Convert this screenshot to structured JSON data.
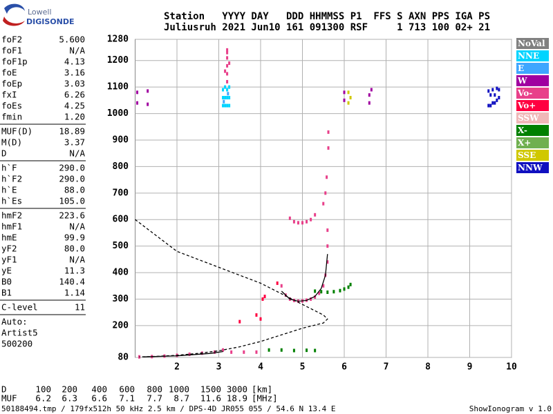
{
  "logo": {
    "top": "Lowell",
    "bottom": "DIGISONDE"
  },
  "header": {
    "line1": "Station   YYYY DAY   DDD HHMMSS P1  FFS S AXN PPS IGA PS",
    "line2": "Juliusruh 2021 Jun10 161 091300 RSF     1 713 100 02+ 21"
  },
  "parameters": [
    [
      [
        "foF2",
        "5.600"
      ],
      [
        "foF1",
        "N/A"
      ],
      [
        "foF1p",
        "4.13"
      ],
      [
        "foE",
        "3.16"
      ],
      [
        "foEp",
        "3.03"
      ],
      [
        "fxI",
        "6.26"
      ],
      [
        "foEs",
        "4.25"
      ],
      [
        "fmin",
        "1.20"
      ]
    ],
    [
      [
        "MUF(D)",
        "18.89"
      ],
      [
        "M(D)",
        "3.37"
      ],
      [
        "D",
        "N/A"
      ]
    ],
    [
      [
        "h`F",
        "290.0"
      ],
      [
        "h`F2",
        "290.0"
      ],
      [
        "h`E",
        "88.0"
      ],
      [
        "h`Es",
        "105.0"
      ]
    ],
    [
      [
        "hmF2",
        "223.6"
      ],
      [
        "hmF1",
        "N/A"
      ],
      [
        "hmE",
        "99.9"
      ],
      [
        "yF2",
        "80.0"
      ],
      [
        "yF1",
        "N/A"
      ],
      [
        "yE",
        "11.3"
      ],
      [
        "B0",
        "140.4"
      ],
      [
        "B1",
        "1.14"
      ]
    ],
    [
      [
        "C-level",
        "11"
      ]
    ]
  ],
  "autoscaling": [
    "Auto:",
    "Artist5",
    "500200"
  ],
  "muf_table": {
    "rows": [
      [
        "D",
        "100",
        "200",
        "400",
        "600",
        "800",
        "1000",
        "1500",
        "3000",
        "[km]"
      ],
      [
        "MUF",
        "6.2",
        "6.3",
        "6.6",
        "7.1",
        "7.7",
        "8.7",
        "11.6",
        "18.9",
        "[MHz]"
      ]
    ]
  },
  "footer": {
    "left": "50188494.tmp / 179fx512h 50 kHz 2.5 km / DPS-4D JR055 055 / 54.6 N 13.4 E",
    "right": "ShowIonogram v 1.0"
  },
  "chart_data": {
    "type": "scatter",
    "grid": true,
    "xlim": [
      1,
      10
    ],
    "xticks": [
      2,
      3,
      4,
      5,
      6,
      7,
      8,
      9,
      10
    ],
    "ylim": [
      80,
      1280
    ],
    "yticks": [
      80,
      200,
      300,
      400,
      500,
      600,
      700,
      800,
      900,
      1000,
      1100,
      1200,
      1280
    ],
    "series": [
      {
        "name": "NoVal",
        "color": "#808080",
        "x": [],
        "y": []
      },
      {
        "name": "NNE",
        "color": "#00d4ff",
        "x": [
          3.1,
          3.15,
          3.2,
          3.25,
          3.1,
          3.15,
          3.2,
          3.25,
          3.1,
          3.2,
          3.15,
          3.25
        ],
        "y": [
          1030,
          1030,
          1030,
          1030,
          1060,
          1060,
          1060,
          1060,
          1090,
          1090,
          1100,
          1100
        ]
      },
      {
        "name": "E",
        "color": "#3fa6ff",
        "x": [
          3.12,
          3.22
        ],
        "y": [
          1045,
          1075
        ]
      },
      {
        "name": "W",
        "color": "#a000a0",
        "x": [
          1.05,
          1.05,
          1.3,
          1.3,
          6.6,
          6.6,
          6.65,
          6.0,
          6.0
        ],
        "y": [
          1040,
          1080,
          1035,
          1085,
          1040,
          1070,
          1090,
          1050,
          1080
        ]
      },
      {
        "name": "Vo-",
        "color": "#e8408a",
        "x": [
          1.1,
          1.4,
          1.7,
          2.0,
          2.3,
          2.6,
          2.9,
          3.1,
          3.3,
          3.6,
          3.9,
          4.5,
          4.6,
          4.7,
          4.8,
          4.9,
          5.0,
          5.1,
          5.2,
          5.3,
          5.4,
          5.5,
          5.55,
          5.6,
          5.6,
          5.6,
          4.7,
          4.8,
          4.9,
          5.0,
          5.1,
          5.2,
          5.3,
          5.5,
          5.55,
          5.58,
          5.62,
          5.62,
          3.2,
          3.2,
          3.2,
          3.2,
          3.2,
          3.2,
          3.15,
          3.25
        ],
        "y": [
          82,
          83,
          85,
          88,
          92,
          96,
          100,
          108,
          100,
          100,
          100,
          350,
          315,
          300,
          295,
          292,
          293,
          296,
          300,
          308,
          322,
          350,
          390,
          440,
          500,
          560,
          605,
          592,
          588,
          588,
          592,
          600,
          618,
          660,
          700,
          760,
          870,
          930,
          1120,
          1150,
          1180,
          1210,
          1230,
          1240,
          1160,
          1190
        ]
      },
      {
        "name": "Vo+",
        "color": "#ff0040",
        "x": [
          3.9,
          4.0,
          4.05,
          4.1,
          4.4,
          3.5
        ],
        "y": [
          240,
          225,
          300,
          310,
          360,
          215
        ]
      },
      {
        "name": "SSW",
        "color": "#f0b8b8",
        "x": [],
        "y": []
      },
      {
        "name": "X-",
        "color": "#008000",
        "x": [
          5.3,
          5.45,
          5.6,
          5.75,
          5.9,
          6.0,
          6.1,
          6.15,
          4.2,
          4.5,
          4.8,
          5.1,
          5.3
        ],
        "y": [
          330,
          328,
          326,
          328,
          332,
          338,
          345,
          355,
          108,
          108,
          106,
          107,
          106
        ]
      },
      {
        "name": "X+",
        "color": "#70b050",
        "x": [],
        "y": []
      },
      {
        "name": "SSE",
        "color": "#d0c800",
        "x": [
          6.1,
          6.15,
          6.1
        ],
        "y": [
          1040,
          1060,
          1080
        ]
      },
      {
        "name": "NNW",
        "color": "#1010c0",
        "x": [
          9.45,
          9.5,
          9.55,
          9.6,
          9.65,
          9.7,
          9.5,
          9.6,
          9.45,
          9.55,
          9.65,
          9.7
        ],
        "y": [
          1030,
          1030,
          1040,
          1040,
          1050,
          1060,
          1070,
          1070,
          1085,
          1090,
          1095,
          1090
        ]
      }
    ],
    "lines": [
      {
        "color": "#000000",
        "dash": true,
        "x": [
          1.0,
          2.0,
          3.0,
          4.0,
          4.5,
          5.0,
          5.5,
          5.6,
          5.5,
          5.0,
          4.5,
          4.0,
          3.5,
          3.0,
          2.5,
          2.0,
          1.5,
          1.1
        ],
        "y": [
          600,
          480,
          420,
          360,
          320,
          280,
          240,
          225,
          210,
          190,
          165,
          140,
          120,
          105,
          95,
          88,
          84,
          82
        ]
      },
      {
        "color": "#000000",
        "dash": false,
        "x": [
          4.5,
          4.7,
          4.9,
          5.1,
          5.3,
          5.45,
          5.55,
          5.6
        ],
        "y": [
          330,
          300,
          292,
          295,
          310,
          340,
          390,
          470
        ]
      },
      {
        "color": "#000000",
        "dash": false,
        "x": [
          1.2,
          2.0,
          2.8,
          3.1
        ],
        "y": [
          82,
          86,
          95,
          102
        ]
      }
    ]
  }
}
